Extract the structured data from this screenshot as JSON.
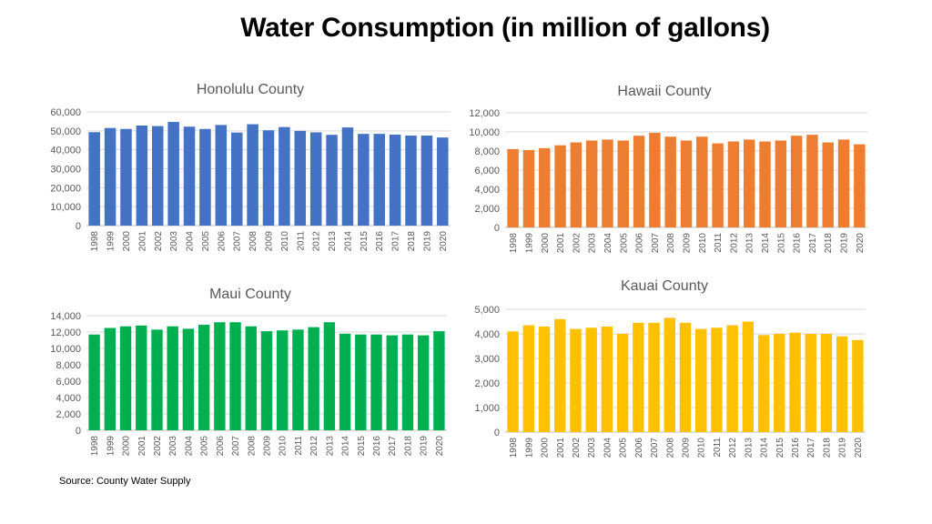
{
  "page": {
    "title": "Water Consumption (in million of gallons)",
    "source": "Source: County Water Supply"
  },
  "chart_data": [
    {
      "id": "honolulu",
      "type": "bar",
      "title": "Honolulu County",
      "xlabel": "",
      "ylabel": "",
      "color": "#4472C4",
      "grid": true,
      "ylim": [
        0,
        60000
      ],
      "yticks": [
        0,
        10000,
        20000,
        30000,
        40000,
        50000,
        60000
      ],
      "ytick_labels": [
        "0",
        "10,000",
        "20,000",
        "30,000",
        "40,000",
        "50,000",
        "60,000"
      ],
      "categories": [
        "1998",
        "1999",
        "2000",
        "2001",
        "2002",
        "2003",
        "2004",
        "2005",
        "2006",
        "2007",
        "2008",
        "2009",
        "2010",
        "2011",
        "2012",
        "2013",
        "2014",
        "2015",
        "2016",
        "2017",
        "2018",
        "2019",
        "2020"
      ],
      "values": [
        49300,
        51500,
        51000,
        52800,
        52500,
        54700,
        52200,
        51000,
        53100,
        49100,
        53500,
        50300,
        52000,
        50000,
        49200,
        47900,
        51800,
        48400,
        48400,
        48000,
        47500,
        47500,
        46500
      ]
    },
    {
      "id": "hawaii",
      "type": "bar",
      "title": "Hawaii County",
      "xlabel": "",
      "ylabel": "",
      "color": "#ED7D31",
      "grid": true,
      "ylim": [
        0,
        12000
      ],
      "yticks": [
        0,
        2000,
        4000,
        6000,
        8000,
        10000,
        12000
      ],
      "ytick_labels": [
        "0",
        "2,000",
        "4,000",
        "6,000",
        "8,000",
        "10,000",
        "12,000"
      ],
      "categories": [
        "1998",
        "1999",
        "2000",
        "2001",
        "2002",
        "2003",
        "2004",
        "2005",
        "2006",
        "2007",
        "2008",
        "2009",
        "2010",
        "2011",
        "2012",
        "2013",
        "2014",
        "2015",
        "2016",
        "2017",
        "2018",
        "2019",
        "2020"
      ],
      "values": [
        8200,
        8100,
        8300,
        8600,
        8900,
        9100,
        9200,
        9100,
        9600,
        9900,
        9500,
        9100,
        9500,
        8800,
        9000,
        9200,
        9000,
        9100,
        9600,
        9700,
        8900,
        9200,
        8700
      ]
    },
    {
      "id": "maui",
      "type": "bar",
      "title": "Maui County",
      "xlabel": "",
      "ylabel": "",
      "color": "#00B050",
      "grid": true,
      "ylim": [
        0,
        14000
      ],
      "yticks": [
        0,
        2000,
        4000,
        6000,
        8000,
        10000,
        12000,
        14000
      ],
      "ytick_labels": [
        "0",
        "2,000",
        "4,000",
        "6,000",
        "8,000",
        "10,000",
        "12,000",
        "14,000"
      ],
      "categories": [
        "1998",
        "1999",
        "2000",
        "2001",
        "2002",
        "2003",
        "2004",
        "2005",
        "2006",
        "2007",
        "2008",
        "2009",
        "2010",
        "2011",
        "2012",
        "2013",
        "2014",
        "2015",
        "2016",
        "2017",
        "2018",
        "2019",
        "2020"
      ],
      "values": [
        11700,
        12500,
        12700,
        12800,
        12300,
        12700,
        12400,
        12900,
        13200,
        13200,
        12700,
        12100,
        12200,
        12300,
        12600,
        13200,
        11800,
        11700,
        11700,
        11600,
        11700,
        11600,
        12100
      ]
    },
    {
      "id": "kauai",
      "type": "bar",
      "title": "Kauai County",
      "xlabel": "",
      "ylabel": "",
      "color": "#FFC000",
      "grid": true,
      "ylim": [
        0,
        5000
      ],
      "yticks": [
        0,
        1000,
        2000,
        3000,
        4000,
        5000
      ],
      "ytick_labels": [
        "0",
        "1,000",
        "2,000",
        "3,000",
        "4,000",
        "5,000"
      ],
      "categories": [
        "1998",
        "1999",
        "2000",
        "2001",
        "2002",
        "2003",
        "2004",
        "2005",
        "2006",
        "2007",
        "2008",
        "2009",
        "2010",
        "2011",
        "2012",
        "2013",
        "2014",
        "2015",
        "2016",
        "2017",
        "2018",
        "2019",
        "2020"
      ],
      "values": [
        4100,
        4350,
        4300,
        4600,
        4200,
        4250,
        4300,
        4000,
        4450,
        4450,
        4650,
        4450,
        4200,
        4250,
        4350,
        4500,
        3950,
        4000,
        4050,
        4000,
        4000,
        3900,
        3750
      ]
    }
  ]
}
